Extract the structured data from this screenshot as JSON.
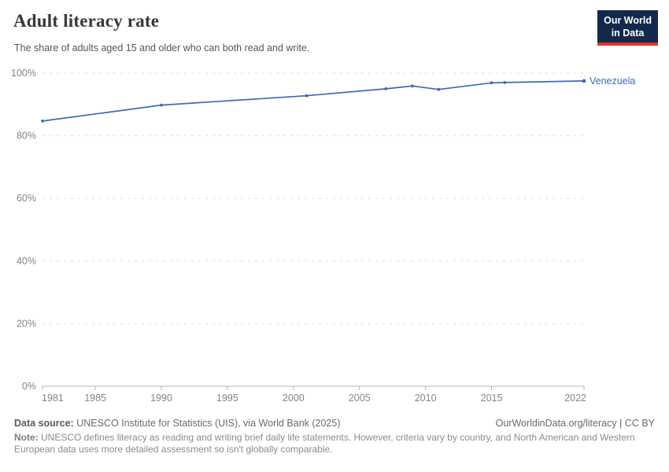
{
  "header": {
    "title": "Adult literacy rate",
    "subtitle": "The share of adults aged 15 and older who can both read and write.",
    "logo": {
      "line1": "Our World",
      "line2": "in Data"
    }
  },
  "colors": {
    "line_accent": "#3d6bb3",
    "logo_bg": "#12294d",
    "logo_accent": "#dd352a",
    "gridline": "#dcdcdc",
    "axis": "#b9b9b9",
    "tick_label": "#858585"
  },
  "chart_data": {
    "type": "line",
    "title": "Adult literacy rate",
    "unit": "%",
    "grid": true,
    "legend_position": "end-of-line-label",
    "xlim": [
      1981,
      2022
    ],
    "ylim": [
      0,
      100
    ],
    "xticks": [
      1981,
      1985,
      1990,
      1995,
      2000,
      2005,
      2010,
      2015,
      2022
    ],
    "yticks": [
      0,
      20,
      40,
      60,
      80,
      100
    ],
    "ytick_suffix": "%",
    "series": [
      {
        "name": "Venezuela",
        "color": "#3d6bb3",
        "points": [
          {
            "year": 1981,
            "value": 84.7
          },
          {
            "year": 1990,
            "value": 89.8
          },
          {
            "year": 2001,
            "value": 92.8
          },
          {
            "year": 2007,
            "value": 95.0
          },
          {
            "year": 2009,
            "value": 95.9
          },
          {
            "year": 2011,
            "value": 94.8
          },
          {
            "year": 2015,
            "value": 96.9
          },
          {
            "year": 2016,
            "value": 97.0
          },
          {
            "year": 2022,
            "value": 97.5
          }
        ]
      }
    ]
  },
  "footer": {
    "datasource_label": "Data source:",
    "datasource_text": " UNESCO Institute for Statistics (UIS), via World Bank (2025)",
    "link": "OurWorldinData.org/literacy | CC BY",
    "note_label": "Note:",
    "note_text": " UNESCO defines literacy as reading and writing brief daily life statements. However, criteria vary by country, and North American and Western European data uses more detailed assessment so isn't globally comparable."
  }
}
